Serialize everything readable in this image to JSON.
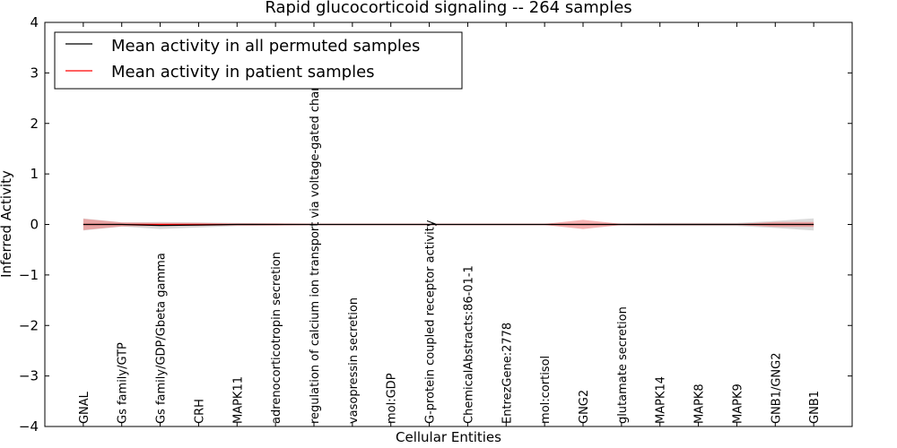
{
  "chart_data": {
    "type": "line",
    "title": "Rapid glucocorticoid signaling -- 264 samples",
    "xlabel": "Cellular Entities",
    "ylabel": "Inferred Activity",
    "ylim": [
      -4,
      4
    ],
    "yticks": [
      4,
      3,
      2,
      1,
      0,
      -1,
      -2,
      -3,
      -4
    ],
    "ytick_labels": [
      "4",
      "3",
      "2",
      "1",
      "0",
      "−1",
      "−2",
      "−3",
      "−4"
    ],
    "legend_position": "top-left",
    "categories": [
      "GNAL",
      "Gs family/GTP",
      "Gs family/GDP/Gbeta gamma",
      "CRH",
      "MAPK11",
      "adrenocorticotropin secretion",
      "regulation of calcium ion transport via voltage-gated channel",
      "vasopressin secretion",
      "mol:GDP",
      "G-protein coupled receptor activity",
      "ChemicalAbstracts:86-01-1",
      "EntrezGene:2778",
      "mol:cortisol",
      "GNG2",
      "glutamate secretion",
      "MAPK14",
      "MAPK8",
      "MAPK9",
      "GNB1/GNG2",
      "GNB1"
    ],
    "series": [
      {
        "name": "Mean activity in all permuted samples",
        "color": "#000000",
        "band_color": "#999999",
        "values": [
          0,
          0,
          -0.02,
          -0.01,
          0,
          0,
          0,
          0,
          0,
          0,
          0,
          0,
          0,
          0,
          0,
          0,
          0,
          0,
          0,
          0
        ],
        "band": [
          0.12,
          0.04,
          0.07,
          0.05,
          0.03,
          0.02,
          0.01,
          0.01,
          0.01,
          0.01,
          0.01,
          0.01,
          0.01,
          0.02,
          0.02,
          0.03,
          0.03,
          0.03,
          0.07,
          0.12
        ]
      },
      {
        "name": "Mean activity in patient samples",
        "color": "#ff0000",
        "band_color": "#f08080",
        "values": [
          0,
          0,
          0,
          0,
          0,
          0,
          0,
          0,
          0,
          0,
          0,
          0,
          0,
          0,
          0,
          0,
          0,
          0,
          0,
          0
        ],
        "band": [
          0.11,
          0.04,
          0.03,
          0.03,
          0.02,
          0.02,
          0.01,
          0.01,
          0.01,
          0.01,
          0.01,
          0.01,
          0.01,
          0.09,
          0.01,
          0.01,
          0.01,
          0.01,
          0.05,
          0.05
        ]
      }
    ]
  }
}
